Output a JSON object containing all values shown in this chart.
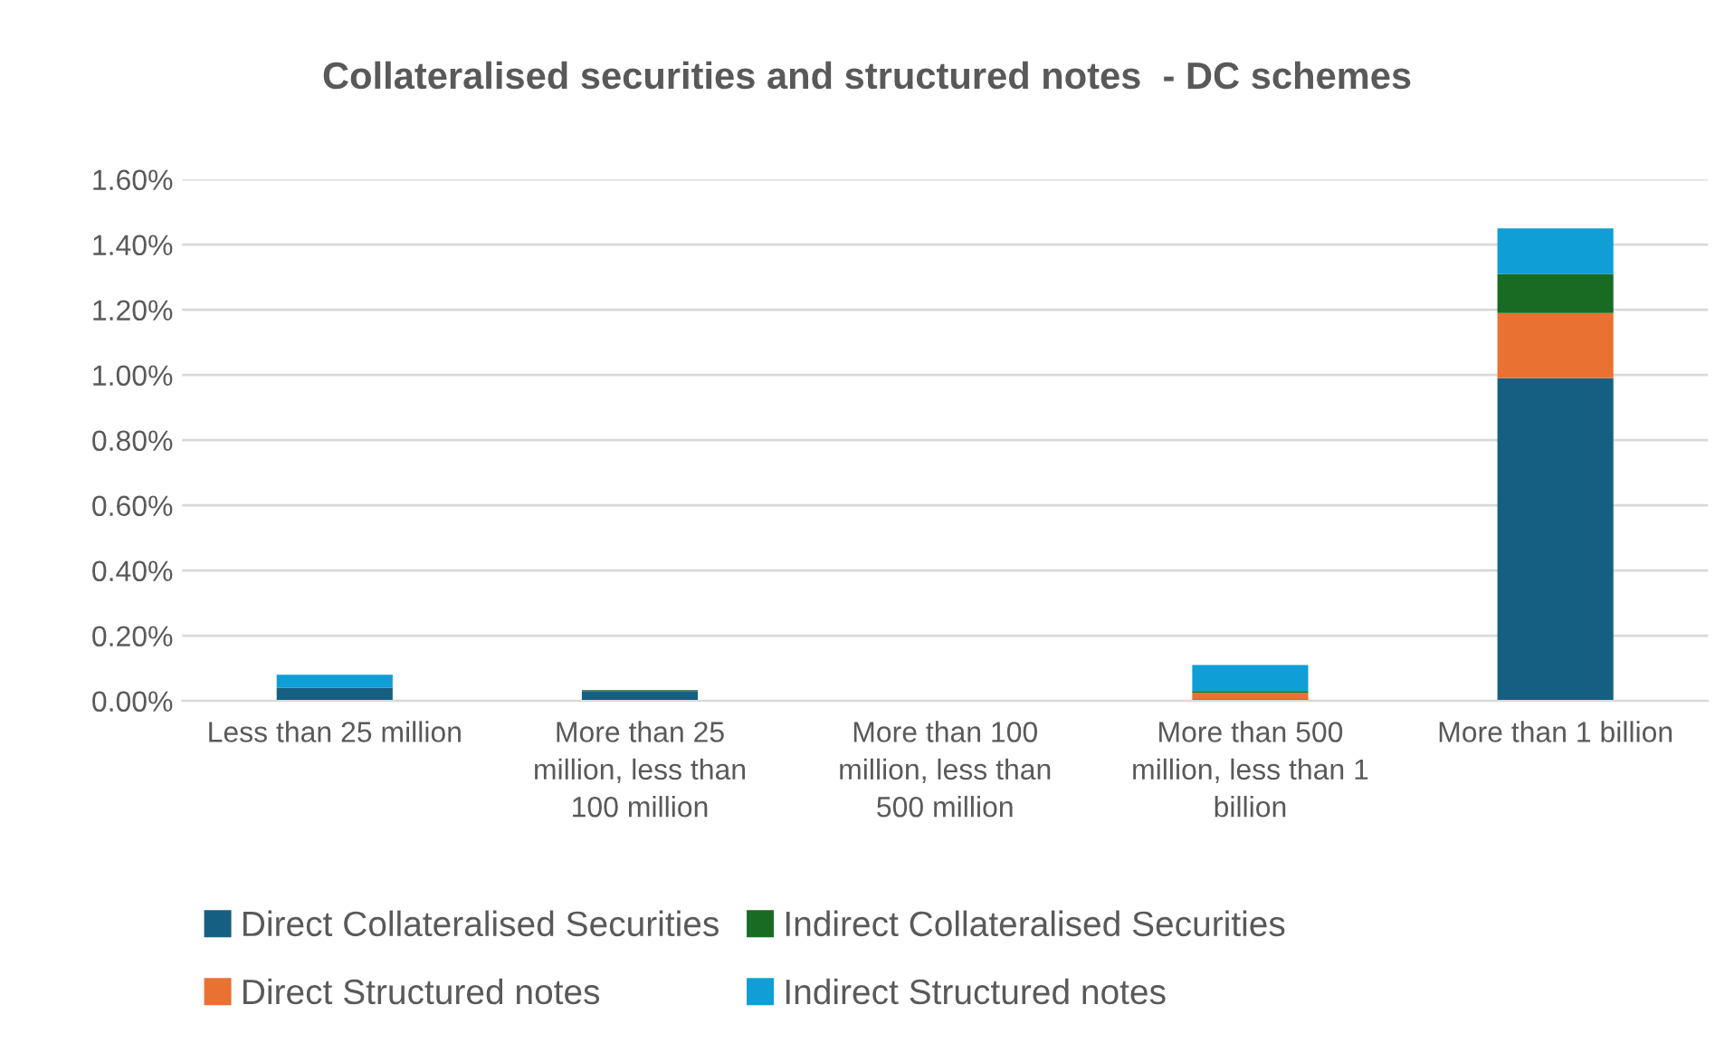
{
  "chart_data": {
    "type": "bar",
    "title": "Collateralised securities and structured notes  - DC schemes",
    "categories": [
      "Less than 25 million",
      "More than 25 million, less than 100 million",
      "More than 100 million, less than 500 million",
      "More than 500 million, less than 1 billion",
      "More than 1 billion"
    ],
    "stacked": true,
    "series": [
      {
        "name": "Direct Collateralised Securities",
        "color": "#156082",
        "values": [
          0.04,
          0.03,
          0,
          0.005,
          0.99
        ]
      },
      {
        "name": "Direct Structured notes",
        "color": "#e97132",
        "values": [
          0,
          0,
          0,
          0.02,
          0.2
        ]
      },
      {
        "name": "Indirect Collateralised Securities",
        "color": "#196b24",
        "values": [
          0,
          0.003,
          0,
          0.005,
          0.12
        ]
      },
      {
        "name": "Indirect Structured notes",
        "color": "#0f9ed5",
        "values": [
          0.04,
          0,
          0,
          0.08,
          0.14
        ]
      }
    ],
    "ylim": [
      0,
      1.6
    ],
    "yticks": [
      {
        "value": 0,
        "label": "0.00%"
      },
      {
        "value": 0.2,
        "label": "0.20%"
      },
      {
        "value": 0.4,
        "label": "0.40%"
      },
      {
        "value": 0.6,
        "label": "0.60%"
      },
      {
        "value": 0.8,
        "label": "0.80%"
      },
      {
        "value": 1.0,
        "label": "1.00%"
      },
      {
        "value": 1.2,
        "label": "1.20%"
      },
      {
        "value": 1.4,
        "label": "1.40%"
      },
      {
        "value": 1.6,
        "label": "1.60%"
      }
    ],
    "grid": "y",
    "legend": "bottom"
  }
}
